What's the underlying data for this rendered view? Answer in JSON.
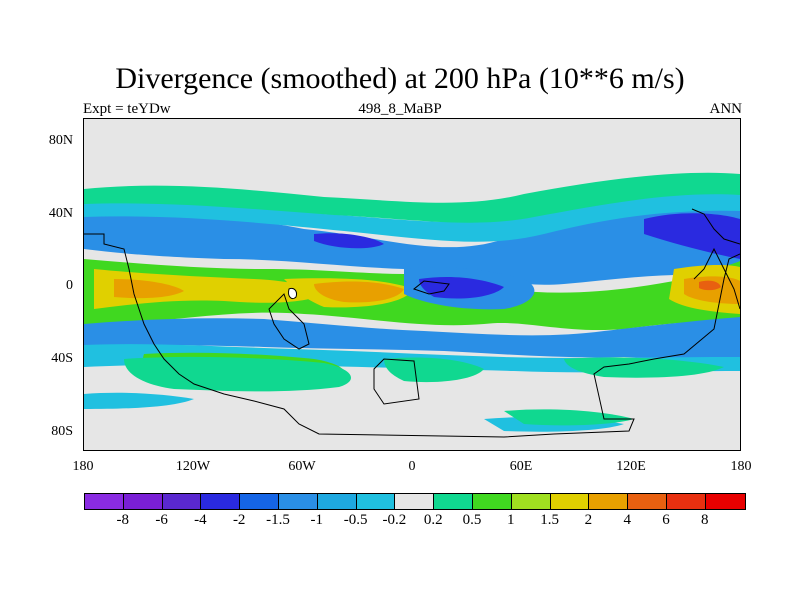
{
  "title": "Divergence (smoothed) at 200 hPa (10**6 m/s)",
  "left_label": "Expt = teYDw",
  "center_label": "498_8_MaBP",
  "right_label": "ANN",
  "y_ticks": [
    "80N",
    "40N",
    "0",
    "40S",
    "80S"
  ],
  "x_ticks": [
    "180",
    "120W",
    "60W",
    "0",
    "60E",
    "120E",
    "180"
  ],
  "colorbar": {
    "labels": [
      "-8",
      "-6",
      "-4",
      "-2",
      "-1.5",
      "-1",
      "-0.5",
      "-0.2",
      "0.2",
      "0.5",
      "1",
      "1.5",
      "2",
      "4",
      "6",
      "8"
    ],
    "colors": [
      "#8a2be2",
      "#7a1fd6",
      "#5a28d0",
      "#2a2ae0",
      "#1565e6",
      "#2a8fe6",
      "#1ea8e0",
      "#20c0e0",
      "#e6e6e6",
      "#10d890",
      "#40d820",
      "#a0e020",
      "#e0d000",
      "#e8a000",
      "#e86010",
      "#e83010",
      "#e80000"
    ]
  },
  "colors": {
    "background": "#e6e6e6",
    "negative_strong": "#2a2ae0",
    "negative_mid": "#2a8fe6",
    "negative_weak": "#20c0e0",
    "positive_weak": "#10d890",
    "positive_mid": "#40d820",
    "positive_strong": "#e8a000",
    "positive_max": "#e86010"
  }
}
